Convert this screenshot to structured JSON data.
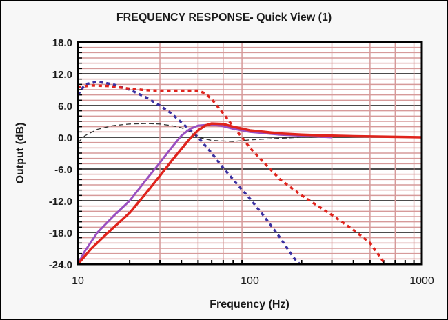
{
  "chart_data": {
    "type": "line",
    "title": "FREQUENCY RESPONSE- Quick View (1)",
    "xlabel": "Frequency (Hz)",
    "ylabel": "Output (dB)",
    "xscale": "log",
    "xlim": [
      10,
      1000
    ],
    "ylim": [
      -24,
      18
    ],
    "x_tick_labels": [
      "10",
      "100",
      "1000"
    ],
    "y_tick_labels": [
      "18.0",
      "12.0",
      "6.0",
      "0.0",
      "-6.0",
      "-12.0",
      "-18.0",
      "-24.0"
    ],
    "y_ticks": [
      18,
      12,
      6,
      0,
      -6,
      -12,
      -18,
      -24
    ],
    "grid": true,
    "series": [
      {
        "name": "blue-dotted",
        "color": "#3a2fa0",
        "style": "dotted",
        "x": [
          10,
          11,
          13,
          16,
          20,
          25,
          30,
          35,
          40,
          50,
          60,
          70,
          85,
          100,
          120,
          150,
          180,
          195
        ],
        "y": [
          8,
          10,
          10.5,
          10,
          9,
          7.5,
          6,
          4.5,
          2.8,
          0,
          -3,
          -5.8,
          -9,
          -11.6,
          -14.8,
          -19,
          -22.8,
          -24
        ]
      },
      {
        "name": "red-dotted",
        "color": "#e0231c",
        "style": "dotted",
        "x": [
          10,
          12,
          15,
          20,
          25,
          30,
          40,
          50,
          55,
          60,
          70,
          80,
          90,
          100,
          150,
          200,
          300,
          400,
          500,
          612
        ],
        "y": [
          9.5,
          9.8,
          9.7,
          9.2,
          8.9,
          8.8,
          8.8,
          8.8,
          8.3,
          7.2,
          4.5,
          2,
          0,
          -2,
          -8,
          -11,
          -14.7,
          -17.5,
          -20,
          -24
        ]
      },
      {
        "name": "black-dashed",
        "color": "#333333",
        "style": "dashed",
        "x": [
          10,
          11,
          13,
          16,
          20,
          25,
          30,
          35,
          40,
          45,
          50,
          60,
          80,
          100,
          150,
          200,
          300
        ],
        "y": [
          -1,
          0.3,
          1.5,
          2.2,
          2.5,
          2.6,
          2.5,
          2.2,
          1.8,
          1,
          0,
          -0.6,
          -0.8,
          -0.5,
          -0.2,
          0,
          0
        ]
      },
      {
        "name": "purple-solid",
        "color": "#9a4fc0",
        "style": "solid",
        "x": [
          10,
          11,
          13,
          16,
          20,
          25,
          30,
          35,
          40,
          45,
          50,
          60,
          70,
          80,
          100,
          150,
          200,
          300
        ],
        "y": [
          -24,
          -21.5,
          -18,
          -15,
          -12,
          -8,
          -4.8,
          -2,
          0.3,
          1.6,
          2.2,
          2.4,
          2.1,
          1.6,
          1,
          0.5,
          0.3,
          0
        ]
      },
      {
        "name": "red-solid",
        "color": "#e0231c",
        "style": "solid",
        "x": [
          10,
          12,
          15,
          20,
          25,
          30,
          35,
          40,
          45,
          50,
          55,
          60,
          70,
          80,
          100,
          150,
          200,
          300,
          400,
          1000
        ],
        "y": [
          -24,
          -21,
          -18,
          -14.3,
          -10.5,
          -7.3,
          -4.5,
          -2.2,
          -0.2,
          1.3,
          2.2,
          2.6,
          2.5,
          2,
          1.3,
          0.7,
          0.5,
          0.3,
          0.2,
          0
        ]
      }
    ]
  }
}
